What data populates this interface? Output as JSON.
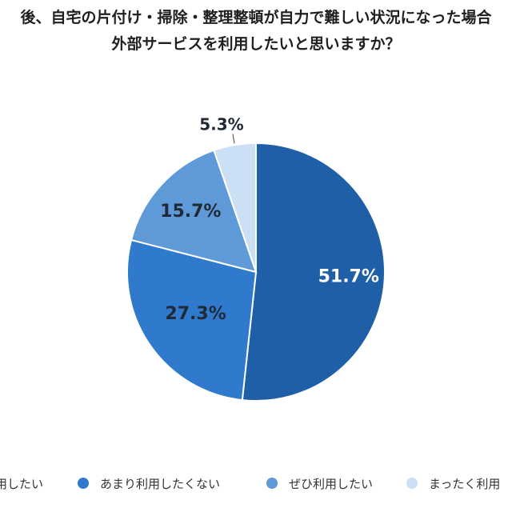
{
  "title": {
    "line1": "後、自宅の片付け・掃除・整理整頓が自力で難しい状況になった場合",
    "line2": "外部サービスを利用したいと思いますか？"
  },
  "chart_data": {
    "type": "pie",
    "title": "後、自宅の片付け・掃除・整理整頓が自力で難しい状況になった場合 外部サービスを利用したいと思いますか？",
    "start": "12 o'clock",
    "direction": "clockwise",
    "slices": [
      {
        "name": "",
        "value": 51.7,
        "label": "51.7%",
        "color": "#1f5fa8"
      },
      {
        "name": "あまり利用したくない",
        "value": 27.3,
        "label": "27.3%",
        "color": "#2f7acc"
      },
      {
        "name": "ぜひ利用したい",
        "value": 15.7,
        "label": "15.7%",
        "color": "#5f9ad8"
      },
      {
        "name": "まったく利用",
        "value": 5.3,
        "label": "5.3%",
        "color": "#cbe0f5"
      }
    ],
    "legend": {
      "placement": "bottom",
      "items": [
        {
          "label": "用したい",
          "color": "#1f5fa8"
        },
        {
          "label": "あまり利用したくない",
          "color": "#2f7acc"
        },
        {
          "label": "ぜひ利用したい",
          "color": "#5f9ad8"
        },
        {
          "label": "まったく利用",
          "color": "#cbe0f5"
        }
      ]
    }
  }
}
